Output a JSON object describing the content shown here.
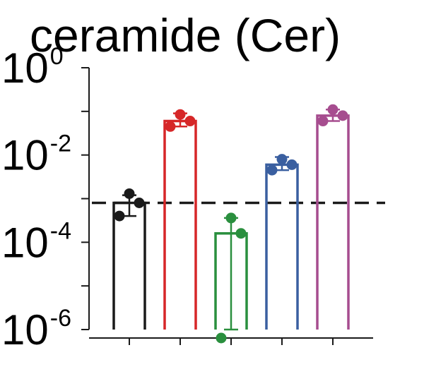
{
  "chart_data": {
    "type": "bar",
    "title": "ceramide (Cer)",
    "xlabel": "",
    "ylabel": "",
    "yscale": "log",
    "ylim": [
      1e-06,
      1
    ],
    "y_major_ticks": [
      {
        "value": 1,
        "base": "10",
        "exp": "0"
      },
      {
        "value": 0.01,
        "base": "10",
        "exp": "-2"
      },
      {
        "value": 0.0001,
        "base": "10",
        "exp": "-4"
      },
      {
        "value": 1e-06,
        "base": "10",
        "exp": "-6"
      }
    ],
    "y_minor_ticks": [
      0.1,
      0.001,
      1e-05
    ],
    "reference_line": {
      "value": 0.0008,
      "style": "dashed",
      "color": "#1a1a1a"
    },
    "grid": false,
    "legend": "none",
    "series": [
      {
        "color": "#1a1a1a",
        "mean": 0.0008,
        "err_low": 0.0004,
        "err_high": 0.0012,
        "points": [
          0.0013,
          0.0008,
          0.0004
        ]
      },
      {
        "color": "#d62728",
        "mean": 0.06,
        "err_low": 0.045,
        "err_high": 0.09,
        "points": [
          0.085,
          0.06,
          0.045
        ]
      },
      {
        "color": "#2a8f3e",
        "mean": 0.00016,
        "err_low": 1e-06,
        "err_high": 0.00036,
        "points": [
          0.00036,
          0.00016,
          6e-07
        ]
      },
      {
        "color": "#3a5fa0",
        "mean": 0.006,
        "err_low": 0.0045,
        "err_high": 0.009,
        "points": [
          0.008,
          0.006,
          0.0045
        ]
      },
      {
        "color": "#a64d8f",
        "mean": 0.08,
        "err_low": 0.06,
        "err_high": 0.11,
        "points": [
          0.11,
          0.08,
          0.06
        ]
      }
    ]
  }
}
